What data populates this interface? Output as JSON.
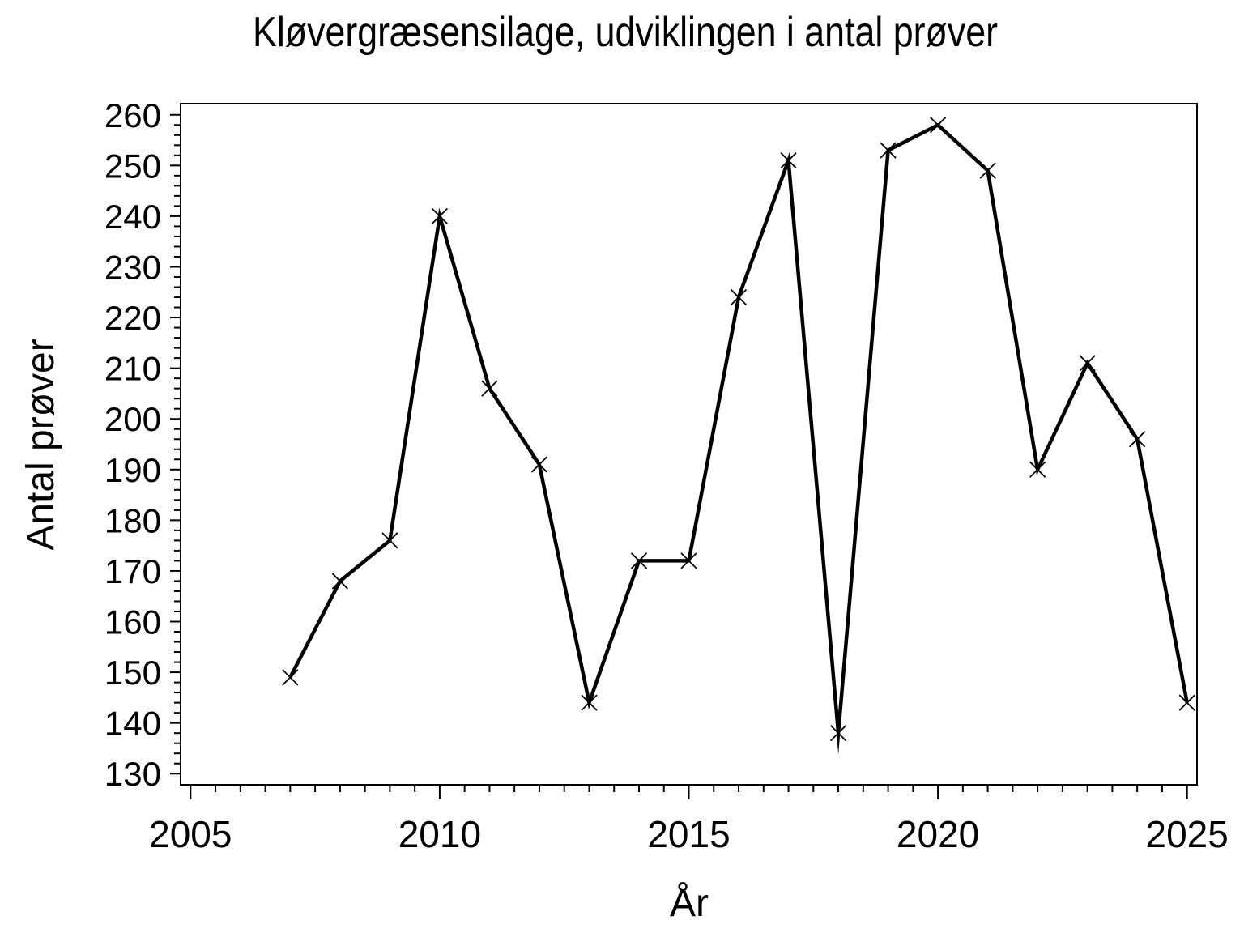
{
  "page": {
    "background_color": "#ffffff",
    "foreground_color": "#000000"
  },
  "chart_data": {
    "type": "line",
    "title": "Kløvergræsensilage, udviklingen i antal prøver",
    "xlabel": "År",
    "ylabel": "Antal prøver",
    "x": [
      2007,
      2008,
      2009,
      2010,
      2011,
      2012,
      2013,
      2014,
      2015,
      2016,
      2017,
      2018,
      2019,
      2020,
      2021,
      2022,
      2023,
      2024,
      2025
    ],
    "values": [
      149,
      168,
      176,
      240,
      206,
      191,
      144,
      172,
      172,
      224,
      251,
      138,
      253,
      258,
      249,
      190,
      211,
      196,
      144
    ],
    "xlim": [
      2004.8,
      2025.2
    ],
    "ylim": [
      127.8,
      262.2
    ],
    "x_major_ticks": [
      2005,
      2010,
      2015,
      2020,
      2025
    ],
    "x_minor_step": 0.5,
    "y_major_ticks": [
      130,
      140,
      150,
      160,
      170,
      180,
      190,
      200,
      210,
      220,
      230,
      240,
      250,
      260
    ],
    "y_minor_step": 2,
    "grid": false,
    "legend": "none",
    "frame": "box",
    "line_color": "#000000",
    "marker": "x-cross",
    "marker_size": 19,
    "background": "#ffffff"
  }
}
